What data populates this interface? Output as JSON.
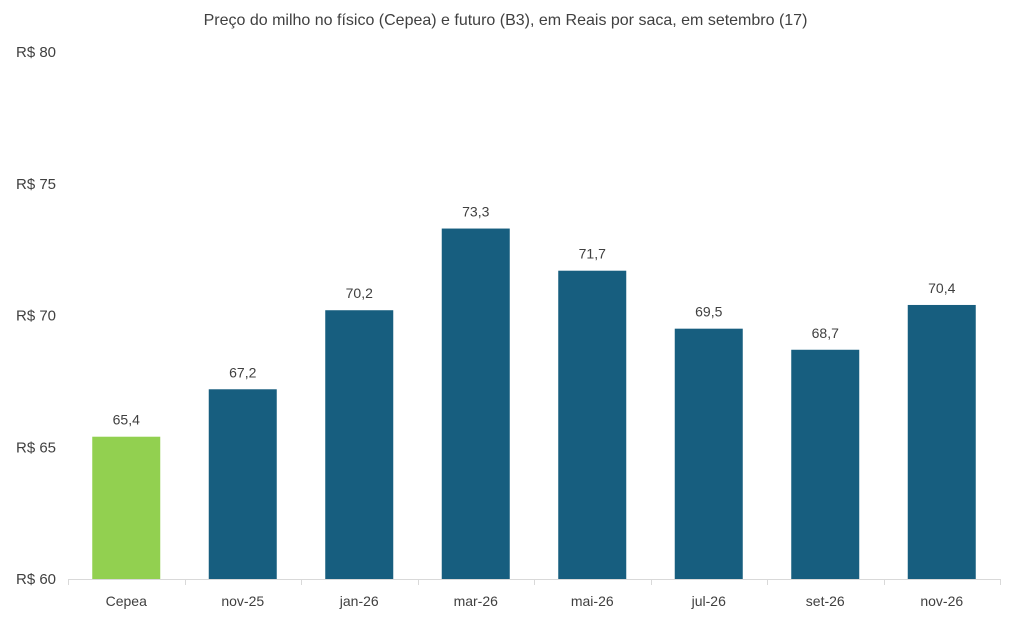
{
  "chart_data": {
    "type": "bar",
    "title": "Preço do milho no físico (Cepea) e futuro (B3), em Reais por saca, em setembro (17)",
    "categories": [
      "Cepea",
      "nov-25",
      "jan-26",
      "mar-26",
      "mai-26",
      "jul-26",
      "set-26",
      "nov-26"
    ],
    "values": [
      65.4,
      67.2,
      70.2,
      73.3,
      71.7,
      69.5,
      68.7,
      70.4
    ],
    "data_labels": [
      "65,4",
      "67,2",
      "70,2",
      "73,3",
      "71,7",
      "69,5",
      "68,7",
      "70,4"
    ],
    "ylim": [
      60,
      80
    ],
    "yticks": [
      60,
      65,
      70,
      75,
      80
    ],
    "ytick_labels": [
      "R$ 60",
      "R$ 65",
      "R$ 70",
      "R$ 75",
      "R$ 80"
    ],
    "xlabel": "",
    "ylabel": "",
    "grid": false,
    "colors": [
      "#92d050",
      "#175e7f",
      "#175e7f",
      "#175e7f",
      "#175e7f",
      "#175e7f",
      "#175e7f",
      "#175e7f"
    ]
  }
}
